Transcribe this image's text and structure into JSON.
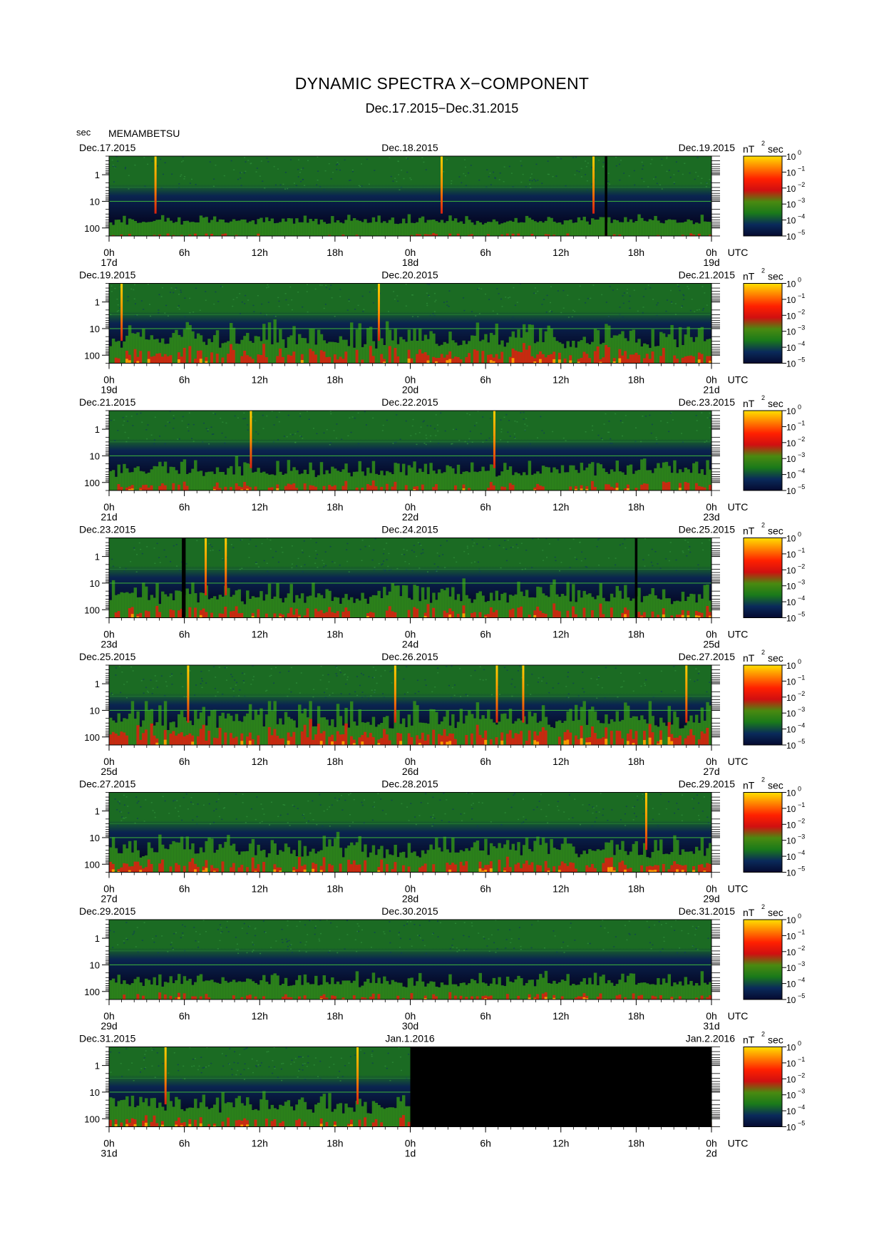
{
  "title": "DYNAMIC SPECTRA X−COMPONENT",
  "subtitle": "Dec.17.2015−Dec.31.2015",
  "y_unit": "sec",
  "station": "MEMAMBETSU",
  "utc_label": "UTC",
  "colorbar": {
    "unit_base": "nT",
    "unit_exp": "2",
    "unit_suffix": "sec",
    "tick_base": "10",
    "exponents": [
      "0",
      "−1",
      "−2",
      "−3",
      "−4",
      "−5"
    ],
    "colors": [
      "#ffe000",
      "#ff8000",
      "#ff2000",
      "#d01010",
      "#4a8a10",
      "#1a7a1a",
      "#0a2a5a",
      "#050a30"
    ]
  },
  "palette": {
    "quiet_top": "#1b6b23",
    "quiet_mid": "#0a2450",
    "quiet_low": "#050a28",
    "active_green": "#2f8a1a",
    "active_red": "#d82010",
    "peak_yellow": "#ffd000",
    "no_data": "#000000",
    "gridline": "#3cb33c"
  },
  "chart_data": {
    "type": "heatmap",
    "x_tick_labels": [
      "0h",
      "6h",
      "12h",
      "18h",
      "0h",
      "6h",
      "12h",
      "18h",
      "0h"
    ],
    "y_tick_labels": [
      "1",
      "10",
      "100"
    ],
    "y_ticks_sec": [
      1,
      10,
      100
    ],
    "y_range_sec": [
      0.2,
      200
    ],
    "color_scale_exponent_range": [
      -5,
      0
    ],
    "panels": [
      {
        "left_date": "Dec.17.2015",
        "mid_date": "Dec.18.2015",
        "right_date": "Dec.19.2015",
        "day_labels": [
          "17d",
          "18d",
          "19d"
        ],
        "activity": 0.25,
        "spikes_hours": [
          3.7,
          26.5,
          38.6
        ],
        "no_data_hours": [
          [
            39.5,
            39.7
          ]
        ]
      },
      {
        "left_date": "Dec.19.2015",
        "mid_date": "Dec.20.2015",
        "right_date": "Dec.21.2015",
        "day_labels": [
          "19d",
          "20d",
          "21d"
        ],
        "activity": 0.7,
        "spikes_hours": [
          1.0,
          21.5
        ],
        "no_data_hours": []
      },
      {
        "left_date": "Dec.21.2015",
        "mid_date": "Dec.22.2015",
        "right_date": "Dec.23.2015",
        "day_labels": [
          "21d",
          "22d",
          "23d"
        ],
        "activity": 0.5,
        "spikes_hours": [
          11.3,
          30.7
        ],
        "no_data_hours": []
      },
      {
        "left_date": "Dec.23.2015",
        "mid_date": "Dec.24.2015",
        "right_date": "Dec.25.2015",
        "day_labels": [
          "23d",
          "24d",
          "25d"
        ],
        "activity": 0.6,
        "spikes_hours": [
          7.7,
          9.3
        ],
        "no_data_hours": [
          [
            5.8,
            6.1
          ],
          [
            41.9,
            42.1
          ]
        ]
      },
      {
        "left_date": "Dec.25.2015",
        "mid_date": "Dec.26.2015",
        "right_date": "Dec.27.2015",
        "day_labels": [
          "25d",
          "26d",
          "27d"
        ],
        "activity": 0.8,
        "spikes_hours": [
          6.3,
          22.8,
          30.9,
          33.0,
          46.0
        ],
        "no_data_hours": []
      },
      {
        "left_date": "Dec.27.2015",
        "mid_date": "Dec.28.2015",
        "right_date": "Dec.29.2015",
        "day_labels": [
          "27d",
          "28d",
          "29d"
        ],
        "activity": 0.65,
        "spikes_hours": [
          42.8
        ],
        "no_data_hours": []
      },
      {
        "left_date": "Dec.29.2015",
        "mid_date": "Dec.30.2015",
        "right_date": "Dec.31.2015",
        "day_labels": [
          "29d",
          "30d",
          "31d"
        ],
        "activity": 0.4,
        "spikes_hours": [],
        "no_data_hours": []
      },
      {
        "left_date": "Dec.31.2015",
        "mid_date": "Jan.1.2016",
        "right_date": "Jan.2.2016",
        "day_labels": [
          "31d",
          "1d",
          "2d"
        ],
        "activity": 0.55,
        "spikes_hours": [
          4.5,
          19.8
        ],
        "no_data_hours": [
          [
            24,
            48
          ]
        ]
      }
    ]
  }
}
